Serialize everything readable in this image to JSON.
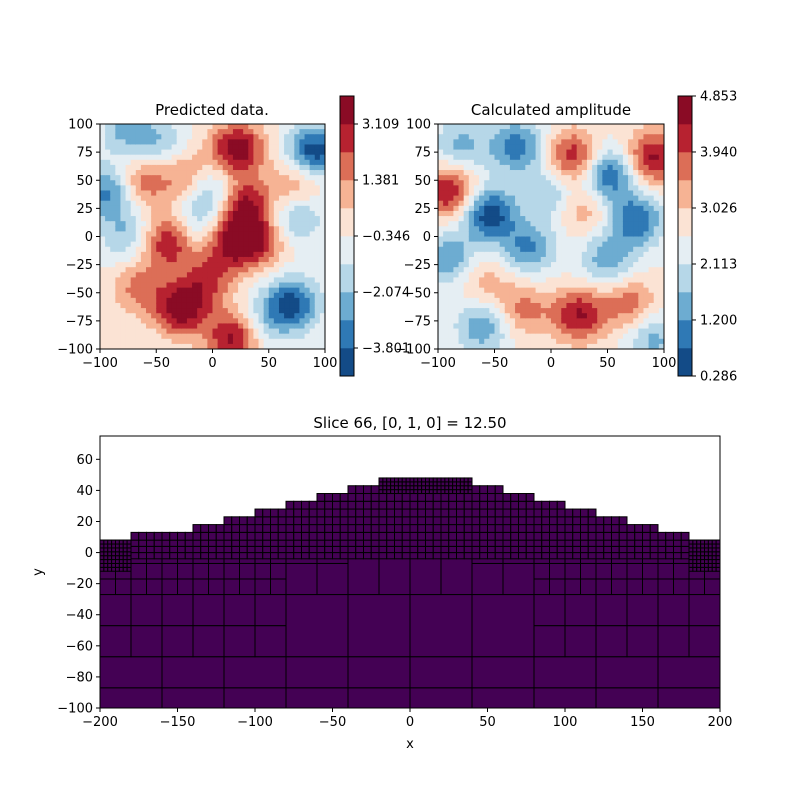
{
  "chart_data": [
    {
      "type": "heatmap",
      "title": "Predicted data.",
      "xlabel": "",
      "ylabel": "",
      "xlim": [
        -100,
        100
      ],
      "ylim": [
        -100,
        100
      ],
      "x_ticks": [
        "−100",
        "−50",
        "0",
        "50",
        "100"
      ],
      "y_ticks": [
        "100",
        "75",
        "50",
        "25",
        "0",
        "−25",
        "−50",
        "−75",
        "−100"
      ],
      "colormap": "RdBu_r",
      "colorbar_range": [
        -4.665,
        3.973
      ],
      "colorbar_ticks": [
        "3.109",
        "1.381",
        "−0.346",
        "−2.074",
        "−3.801"
      ],
      "colorbar_tick_values": [
        3.109,
        1.381,
        -0.346,
        -2.074,
        -3.801
      ],
      "blobs": [
        {
          "x": 22,
          "y": 78,
          "v": 1.0
        },
        {
          "x": 28,
          "y": 28,
          "v": 0.9
        },
        {
          "x": -40,
          "y": -5,
          "v": 0.85
        },
        {
          "x": 15,
          "y": -5,
          "v": 0.8
        },
        {
          "x": 40,
          "y": -5,
          "v": 0.7
        },
        {
          "x": -28,
          "y": -65,
          "v": 0.95
        },
        {
          "x": 20,
          "y": -90,
          "v": 1.0
        },
        {
          "x": -65,
          "y": 48,
          "v": 0.65
        },
        {
          "x": 75,
          "y": 45,
          "v": 0.55
        },
        {
          "x": -5,
          "y": -40,
          "v": 0.6
        },
        {
          "x": -65,
          "y": -45,
          "v": 0.5
        },
        {
          "x": -25,
          "y": 55,
          "v": 0.5
        },
        {
          "x": 90,
          "y": 75,
          "v": -1.0
        },
        {
          "x": -90,
          "y": 40,
          "v": -0.8
        },
        {
          "x": 70,
          "y": -60,
          "v": -0.95
        },
        {
          "x": 75,
          "y": 20,
          "v": -0.55
        },
        {
          "x": -75,
          "y": 95,
          "v": -0.5
        },
        {
          "x": -45,
          "y": 80,
          "v": -0.4
        },
        {
          "x": 0,
          "y": 40,
          "v": -0.5
        },
        {
          "x": -75,
          "y": 0,
          "v": -0.45
        },
        {
          "x": 40,
          "y": -80,
          "v": -0.4
        },
        {
          "x": -10,
          "y": 10,
          "v": -0.4
        }
      ]
    },
    {
      "type": "heatmap",
      "title": "Calculated amplitude",
      "xlabel": "",
      "ylabel": "",
      "xlim": [
        -100,
        100
      ],
      "ylim": [
        -100,
        100
      ],
      "x_ticks": [
        "−100",
        "−50",
        "0",
        "50",
        "100"
      ],
      "y_ticks": [
        "100",
        "75",
        "50",
        "25",
        "0",
        "−25",
        "−50",
        "−75",
        "−100"
      ],
      "colormap": "RdBu_r",
      "colorbar_range": [
        0.286,
        4.853
      ],
      "colorbar_ticks": [
        "4.853",
        "3.940",
        "3.026",
        "2.113",
        "1.200",
        "0.286"
      ],
      "colorbar_tick_values": [
        4.853,
        3.94,
        3.026,
        2.113,
        1.2,
        0.286
      ],
      "blobs": [
        {
          "x": 20,
          "y": 70,
          "v": 0.85
        },
        {
          "x": -90,
          "y": 40,
          "v": 0.9
        },
        {
          "x": 90,
          "y": 70,
          "v": 0.9
        },
        {
          "x": 25,
          "y": -70,
          "v": 0.85
        },
        {
          "x": -25,
          "y": -65,
          "v": 0.5
        },
        {
          "x": 70,
          "y": -60,
          "v": 0.55
        },
        {
          "x": 30,
          "y": 25,
          "v": 0.4
        },
        {
          "x": -60,
          "y": -40,
          "v": 0.35
        },
        {
          "x": -55,
          "y": 20,
          "v": -1.0
        },
        {
          "x": 50,
          "y": 55,
          "v": -0.9
        },
        {
          "x": 75,
          "y": 15,
          "v": -0.8
        },
        {
          "x": -30,
          "y": 80,
          "v": -0.75
        },
        {
          "x": -20,
          "y": -10,
          "v": -0.65
        },
        {
          "x": -60,
          "y": -80,
          "v": -0.6
        },
        {
          "x": -90,
          "y": -20,
          "v": -0.6
        },
        {
          "x": 50,
          "y": -20,
          "v": -0.55
        },
        {
          "x": 90,
          "y": -90,
          "v": -0.5
        },
        {
          "x": 0,
          "y": 40,
          "v": -0.45
        },
        {
          "x": -80,
          "y": 80,
          "v": -0.5
        }
      ]
    },
    {
      "type": "heatmap",
      "title": "Slice 66, [0, 1, 0] = 12.50",
      "xlabel": "x",
      "ylabel": "y",
      "xlim": [
        -200,
        200
      ],
      "ylim": [
        -100,
        75
      ],
      "x_ticks": [
        -200,
        -150,
        -100,
        -50,
        0,
        50,
        100,
        150,
        200
      ],
      "x_tick_labels": [
        "−200",
        "−150",
        "−100",
        "−50",
        "0",
        "50",
        "100",
        "150",
        "200"
      ],
      "y_ticks": [
        60,
        40,
        20,
        0,
        -20,
        -40,
        -60,
        -80,
        -100
      ],
      "y_tick_labels": [
        "60",
        "40",
        "20",
        "0",
        "−20",
        "−40",
        "−60",
        "−80",
        "−100"
      ],
      "fill_color": "#440154",
      "edge_color": "#000000",
      "column_tops": [
        {
          "x": [
            -200,
            -180
          ],
          "top": 8
        },
        {
          "x": [
            -180,
            -140
          ],
          "top": 13
        },
        {
          "x": [
            -140,
            -120
          ],
          "top": 18
        },
        {
          "x": [
            -120,
            -100
          ],
          "top": 23
        },
        {
          "x": [
            -100,
            -80
          ],
          "top": 28
        },
        {
          "x": [
            -80,
            -60
          ],
          "top": 33
        },
        {
          "x": [
            -60,
            -40
          ],
          "top": 38
        },
        {
          "x": [
            -40,
            -20
          ],
          "top": 43
        },
        {
          "x": [
            -20,
            40
          ],
          "top": 48
        },
        {
          "x": [
            40,
            60
          ],
          "top": 43
        },
        {
          "x": [
            60,
            80
          ],
          "top": 38
        },
        {
          "x": [
            80,
            100
          ],
          "top": 33
        },
        {
          "x": [
            100,
            120
          ],
          "top": 28
        },
        {
          "x": [
            120,
            140
          ],
          "top": 23
        },
        {
          "x": [
            140,
            160
          ],
          "top": 18
        },
        {
          "x": [
            160,
            180
          ],
          "top": 13
        },
        {
          "x": [
            180,
            200
          ],
          "top": 8
        }
      ]
    }
  ]
}
